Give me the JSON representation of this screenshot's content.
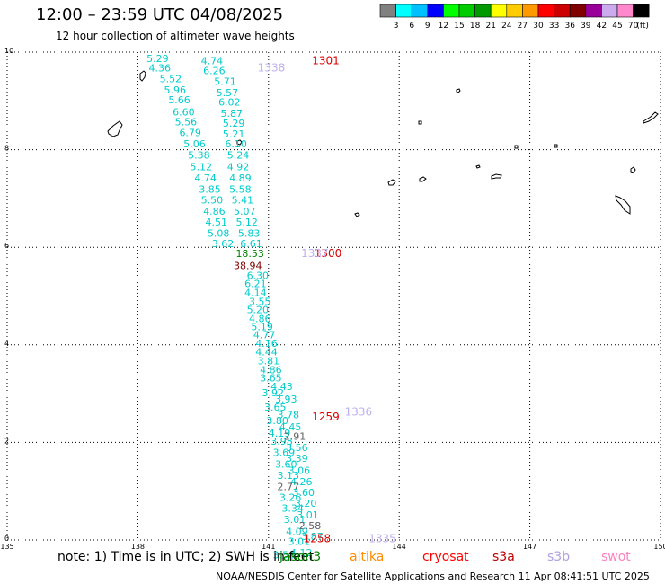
{
  "title": "12:00 – 23:59 UTC 04/08/2025",
  "subtitle": "12 hour collection of altimeter wave heights",
  "note": "note: 1) Time is in UTC; 2) SWH is in feet",
  "footer": "NOAA/NESDIS Center for Satellite Applications and Research    11 Apr 08:41:51 UTC 2025",
  "colorbar": {
    "unit": "(ft)",
    "colors": [
      "#808080",
      "#00ffff",
      "#00bfff",
      "#0000ff",
      "#00ff00",
      "#00cc00",
      "#009900",
      "#ffff00",
      "#ffcc00",
      "#ff9900",
      "#ff0000",
      "#cc0000",
      "#800000",
      "#990099",
      "#ccaaee",
      "#ff88cc",
      "#000000"
    ],
    "labels": [
      "3",
      "6",
      "9",
      "12",
      "15",
      "18",
      "21",
      "24",
      "27",
      "30",
      "33",
      "36",
      "39",
      "42",
      "45",
      "70"
    ]
  },
  "legend": [
    {
      "label": "jason3",
      "color": "#008000"
    },
    {
      "label": "altika",
      "color": "#ff8c00"
    },
    {
      "label": "cryosat",
      "color": "#ff0000"
    },
    {
      "label": "s3a",
      "color": "#c00000"
    },
    {
      "label": "s3b",
      "color": "#b0a0e0"
    },
    {
      "label": "swot",
      "color": "#ff80c0"
    }
  ],
  "axes": {
    "lon_ticks": [
      "135",
      "138",
      "141",
      "144",
      "147",
      "150"
    ],
    "lat_ticks": [
      "0",
      "2",
      "4",
      "6",
      "8",
      "10"
    ],
    "lon_range": [
      135,
      150
    ],
    "lat_range": [
      0,
      10
    ]
  },
  "time_labels": [
    {
      "text": "1301",
      "lon": 142.0,
      "lat": 9.75,
      "color": "#dd0000"
    },
    {
      "text": "1300",
      "lon": 142.05,
      "lat": 5.8,
      "color": "#dd0000"
    },
    {
      "text": "1259",
      "lon": 142.0,
      "lat": 2.45,
      "color": "#dd0000"
    },
    {
      "text": "1258",
      "lon": 141.8,
      "lat": -0.05,
      "color": "#dd0000"
    },
    {
      "text": "1338",
      "lon": 140.75,
      "lat": 9.6,
      "color": "#c0b0f0"
    },
    {
      "text": "1337",
      "lon": 141.75,
      "lat": 5.8,
      "color": "#c0b0f0"
    },
    {
      "text": "1336",
      "lon": 142.75,
      "lat": 2.55,
      "color": "#c0b0f0"
    },
    {
      "text": "1335",
      "lon": 143.3,
      "lat": -0.05,
      "color": "#c0b0f0"
    }
  ],
  "wave_heights": [
    {
      "text": "5.29",
      "lon": 138.2,
      "lat": 9.8,
      "color": "#00cccc"
    },
    {
      "text": "4.74",
      "lon": 139.45,
      "lat": 9.75,
      "color": "#00cccc"
    },
    {
      "text": "4.36",
      "lon": 138.25,
      "lat": 9.6,
      "color": "#00cccc"
    },
    {
      "text": "6.26",
      "lon": 139.5,
      "lat": 9.55,
      "color": "#00cccc"
    },
    {
      "text": "5.71",
      "lon": 139.75,
      "lat": 9.33,
      "color": "#00cccc"
    },
    {
      "text": "5.52",
      "lon": 138.5,
      "lat": 9.38,
      "color": "#00cccc"
    },
    {
      "text": "5.96",
      "lon": 138.6,
      "lat": 9.15,
      "color": "#00cccc"
    },
    {
      "text": "5.57",
      "lon": 139.8,
      "lat": 9.1,
      "color": "#00cccc"
    },
    {
      "text": "5.66",
      "lon": 138.7,
      "lat": 8.95,
      "color": "#00cccc"
    },
    {
      "text": "6.02",
      "lon": 139.85,
      "lat": 8.9,
      "color": "#00cccc"
    },
    {
      "text": "6.60",
      "lon": 138.8,
      "lat": 8.7,
      "color": "#00cccc"
    },
    {
      "text": "5.87",
      "lon": 139.9,
      "lat": 8.67,
      "color": "#00cccc"
    },
    {
      "text": "5.56",
      "lon": 138.85,
      "lat": 8.5,
      "color": "#00cccc"
    },
    {
      "text": "5.29",
      "lon": 139.95,
      "lat": 8.47,
      "color": "#00cccc"
    },
    {
      "text": "6.79",
      "lon": 138.95,
      "lat": 8.28,
      "color": "#00cccc"
    },
    {
      "text": "5.21",
      "lon": 139.95,
      "lat": 8.25,
      "color": "#00cccc"
    },
    {
      "text": "5.06",
      "lon": 139.05,
      "lat": 8.05,
      "color": "#00cccc"
    },
    {
      "text": "6.10",
      "lon": 140.0,
      "lat": 8.05,
      "color": "#00cccc"
    },
    {
      "text": "5.38",
      "lon": 139.15,
      "lat": 7.82,
      "color": "#00cccc"
    },
    {
      "text": "5.24",
      "lon": 140.05,
      "lat": 7.82,
      "color": "#00cccc"
    },
    {
      "text": "5.12",
      "lon": 139.2,
      "lat": 7.58,
      "color": "#00cccc"
    },
    {
      "text": "4.92",
      "lon": 140.05,
      "lat": 7.58,
      "color": "#00cccc"
    },
    {
      "text": "4.74",
      "lon": 139.3,
      "lat": 7.35,
      "color": "#00cccc"
    },
    {
      "text": "4.89",
      "lon": 140.1,
      "lat": 7.35,
      "color": "#00cccc"
    },
    {
      "text": "3.85",
      "lon": 139.4,
      "lat": 7.12,
      "color": "#00cccc"
    },
    {
      "text": "5.58",
      "lon": 140.1,
      "lat": 7.12,
      "color": "#00cccc"
    },
    {
      "text": "5.50",
      "lon": 139.45,
      "lat": 6.9,
      "color": "#00cccc"
    },
    {
      "text": "5.41",
      "lon": 140.15,
      "lat": 6.9,
      "color": "#00cccc"
    },
    {
      "text": "4.86",
      "lon": 139.5,
      "lat": 6.67,
      "color": "#00cccc"
    },
    {
      "text": "5.07",
      "lon": 140.2,
      "lat": 6.67,
      "color": "#00cccc"
    },
    {
      "text": "4.51",
      "lon": 139.55,
      "lat": 6.45,
      "color": "#00cccc"
    },
    {
      "text": "5.12",
      "lon": 140.25,
      "lat": 6.45,
      "color": "#00cccc"
    },
    {
      "text": "5.08",
      "lon": 139.6,
      "lat": 6.22,
      "color": "#00cccc"
    },
    {
      "text": "5.83",
      "lon": 140.3,
      "lat": 6.22,
      "color": "#00cccc"
    },
    {
      "text": "3.62",
      "lon": 139.7,
      "lat": 6.0,
      "color": "#00cccc"
    },
    {
      "text": "6.61",
      "lon": 140.35,
      "lat": 6.0,
      "color": "#00cccc"
    },
    {
      "text": "18.53",
      "lon": 140.25,
      "lat": 5.8,
      "color": "#008000"
    },
    {
      "text": "38.94",
      "lon": 140.2,
      "lat": 5.55,
      "color": "#800000"
    },
    {
      "text": "6.30",
      "lon": 140.5,
      "lat": 5.35,
      "color": "#00cccc"
    },
    {
      "text": "6.21",
      "lon": 140.45,
      "lat": 5.18,
      "color": "#00cccc"
    },
    {
      "text": "4.14",
      "lon": 140.45,
      "lat": 5.0,
      "color": "#00cccc"
    },
    {
      "text": "3.55",
      "lon": 140.55,
      "lat": 4.82,
      "color": "#00cccc"
    },
    {
      "text": "5.20",
      "lon": 140.5,
      "lat": 4.65,
      "color": "#00cccc"
    },
    {
      "text": "4.86",
      "lon": 140.55,
      "lat": 4.47,
      "color": "#00cccc"
    },
    {
      "text": "5.19",
      "lon": 140.6,
      "lat": 4.3,
      "color": "#00cccc"
    },
    {
      "text": "4.77",
      "lon": 140.65,
      "lat": 4.13,
      "color": "#00cccc"
    },
    {
      "text": "4.16",
      "lon": 140.7,
      "lat": 3.96,
      "color": "#00cccc"
    },
    {
      "text": "4.44",
      "lon": 140.7,
      "lat": 3.78,
      "color": "#00cccc"
    },
    {
      "text": "3.81",
      "lon": 140.75,
      "lat": 3.6,
      "color": "#00cccc"
    },
    {
      "text": "4.86",
      "lon": 140.8,
      "lat": 3.42,
      "color": "#00cccc"
    },
    {
      "text": "3.65",
      "lon": 140.8,
      "lat": 3.25,
      "color": "#00cccc"
    },
    {
      "text": "4.43",
      "lon": 141.05,
      "lat": 3.08,
      "color": "#00cccc"
    },
    {
      "text": "3.92",
      "lon": 140.85,
      "lat": 2.95,
      "color": "#00cccc"
    },
    {
      "text": "3.93",
      "lon": 141.15,
      "lat": 2.82,
      "color": "#00cccc"
    },
    {
      "text": "3.65",
      "lon": 140.9,
      "lat": 2.65,
      "color": "#00cccc"
    },
    {
      "text": "3.78",
      "lon": 141.2,
      "lat": 2.5,
      "color": "#00cccc"
    },
    {
      "text": "3.80",
      "lon": 140.95,
      "lat": 2.38,
      "color": "#00cccc"
    },
    {
      "text": "4.45",
      "lon": 141.25,
      "lat": 2.25,
      "color": "#00cccc"
    },
    {
      "text": "4.19",
      "lon": 141.0,
      "lat": 2.12,
      "color": "#00cccc"
    },
    {
      "text": "2.91",
      "lon": 141.35,
      "lat": 2.05,
      "color": "#606060"
    },
    {
      "text": "3.98",
      "lon": 141.05,
      "lat": 1.95,
      "color": "#00cccc"
    },
    {
      "text": "3.56",
      "lon": 141.4,
      "lat": 1.82,
      "color": "#00cccc"
    },
    {
      "text": "3.69",
      "lon": 141.1,
      "lat": 1.72,
      "color": "#00cccc"
    },
    {
      "text": "3.39",
      "lon": 141.4,
      "lat": 1.6,
      "color": "#00cccc"
    },
    {
      "text": "3.60",
      "lon": 141.15,
      "lat": 1.48,
      "color": "#00cccc"
    },
    {
      "text": "3.06",
      "lon": 141.45,
      "lat": 1.35,
      "color": "#00cccc"
    },
    {
      "text": "3.13",
      "lon": 141.2,
      "lat": 1.25,
      "color": "#00cccc"
    },
    {
      "text": "4.26",
      "lon": 141.5,
      "lat": 1.12,
      "color": "#00cccc"
    },
    {
      "text": "2.77",
      "lon": 141.2,
      "lat": 1.02,
      "color": "#606060"
    },
    {
      "text": "3.60",
      "lon": 141.55,
      "lat": 0.9,
      "color": "#00cccc"
    },
    {
      "text": "3.26",
      "lon": 141.25,
      "lat": 0.8,
      "color": "#00cccc"
    },
    {
      "text": "3.20",
      "lon": 141.6,
      "lat": 0.68,
      "color": "#00cccc"
    },
    {
      "text": "3.34",
      "lon": 141.3,
      "lat": 0.58,
      "color": "#00cccc"
    },
    {
      "text": "3.01",
      "lon": 141.65,
      "lat": 0.44,
      "color": "#00cccc"
    },
    {
      "text": "3.01",
      "lon": 141.35,
      "lat": 0.35,
      "color": "#00cccc"
    },
    {
      "text": "2.58",
      "lon": 141.7,
      "lat": 0.22,
      "color": "#606060"
    },
    {
      "text": "4.09",
      "lon": 141.4,
      "lat": 0.1,
      "color": "#00cccc"
    },
    {
      "text": "3.87",
      "lon": 141.75,
      "lat": 0.0,
      "color": "#00cccc"
    },
    {
      "text": "3.01",
      "lon": 141.45,
      "lat": -0.1,
      "color": "#00cccc"
    },
    {
      "text": "4.12",
      "lon": 141.5,
      "lat": -0.33,
      "color": "#00cccc"
    },
    {
      "text": "3.58",
      "lon": 141.1,
      "lat": -0.38,
      "color": "#00cccc"
    }
  ]
}
